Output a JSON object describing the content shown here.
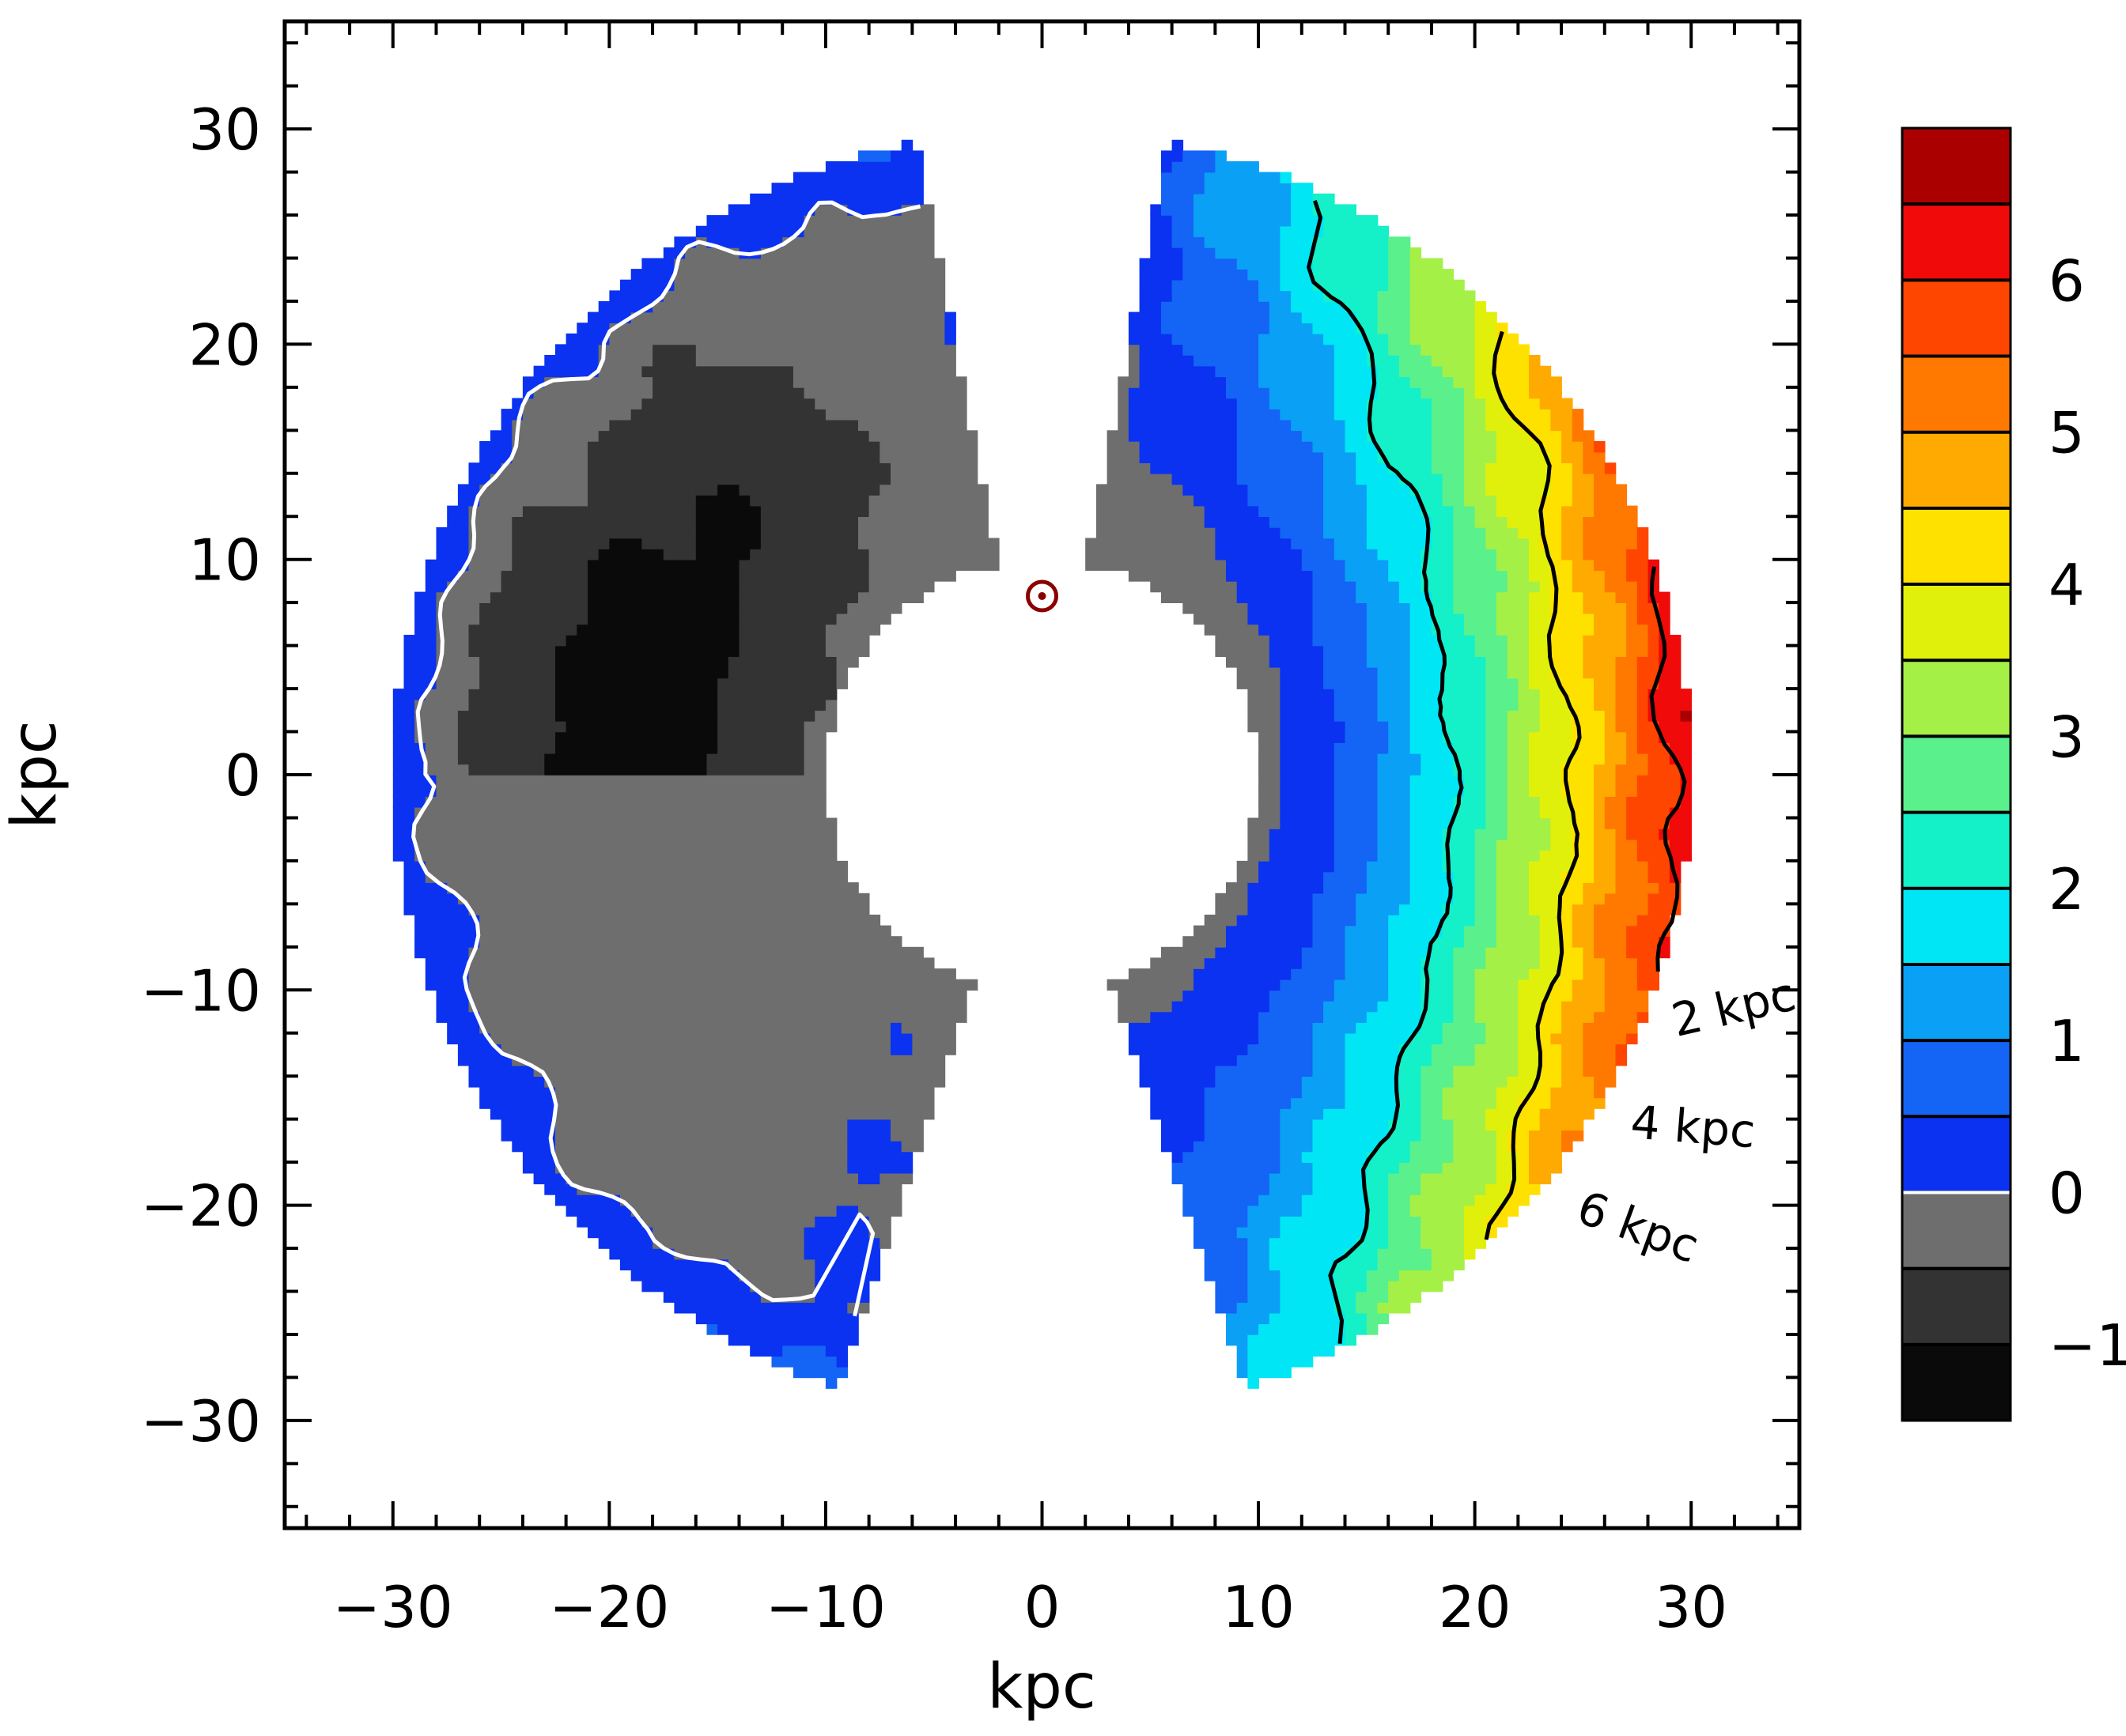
{
  "chart_data": {
    "type": "heatmap",
    "title": "",
    "xlabel": "kpc",
    "ylabel": "kpc",
    "xlim": [
      -35,
      35
    ],
    "ylim": [
      -35,
      35
    ],
    "x_ticks": [
      -30,
      -20,
      -10,
      0,
      10,
      20,
      30
    ],
    "x_tick_labels": [
      "−30",
      "−20",
      "−10",
      "0",
      "10",
      "20",
      "30"
    ],
    "y_ticks": [
      -30,
      -20,
      -10,
      0,
      10,
      20,
      30
    ],
    "y_tick_labels": [
      "−30",
      "−20",
      "−10",
      "0",
      "10",
      "20",
      "30"
    ],
    "map": {
      "center": [
        0,
        0
      ],
      "inner_radius": 10,
      "outer_radius": 30,
      "sun_position": [
        0,
        8.3
      ]
    },
    "colorbar": {
      "range": [
        -1.5,
        7
      ],
      "levels": [
        -1.5,
        -1,
        -0.5,
        0,
        0.5,
        1,
        1.5,
        2,
        2.5,
        3,
        3.5,
        4,
        4.5,
        5,
        5.5,
        6,
        6.5,
        7
      ],
      "colors": [
        "#0a0a0a",
        "#333333",
        "#6e6e6e",
        "#0a32f0",
        "#1464f5",
        "#0aa0f5",
        "#00e6f5",
        "#14f0c8",
        "#5af08c",
        "#a5f046",
        "#e1f00a",
        "#ffe100",
        "#ffaa00",
        "#ff7800",
        "#ff4600",
        "#f00a0a",
        "#aa0000"
      ],
      "ticks": [
        -1,
        0,
        1,
        2,
        3,
        4,
        5,
        6
      ],
      "tick_labels": [
        "−1",
        "0",
        "1",
        "2",
        "3",
        "4",
        "5",
        "6"
      ]
    },
    "contours": [
      {
        "level": 0,
        "color": "#ffffff"
      },
      {
        "level": 2,
        "color": "#000000",
        "label": "2 kpc"
      },
      {
        "level": 4,
        "color": "#000000",
        "label": "4 kpc"
      },
      {
        "level": 6,
        "color": "#000000",
        "label": "6 kpc"
      }
    ],
    "contour_labels": [
      "2 kpc",
      "4 kpc",
      "6 kpc"
    ]
  }
}
